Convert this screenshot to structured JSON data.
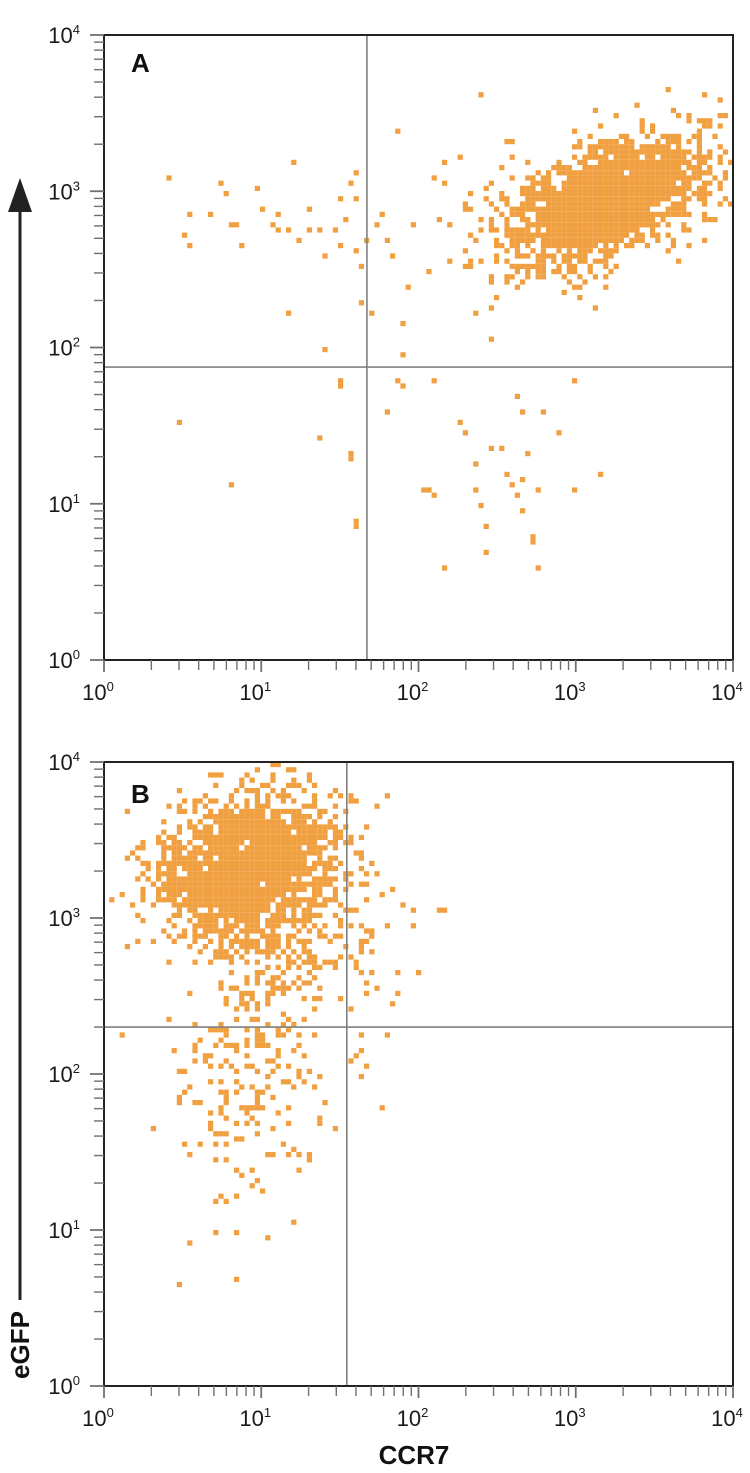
{
  "figure": {
    "y_axis_title": "eGFP",
    "x_axis_title": "CCR7",
    "dot_color": "#F0A040",
    "frame_color": "#222222",
    "gate_color": "#808080",
    "tick_color": "#707070"
  },
  "chart_data": [
    {
      "type": "scatter",
      "panel": "A",
      "title": "A",
      "xlabel": "CCR7",
      "ylabel": "eGFP",
      "xscale": "log",
      "yscale": "log",
      "xlim": [
        1,
        10000
      ],
      "ylim": [
        1,
        10000
      ],
      "x_tick_labels": [
        "10^0",
        "10^1",
        "10^2",
        "10^3",
        "10^4"
      ],
      "y_tick_labels": [
        "10^0",
        "10^1",
        "10^2",
        "10^3",
        "10^4"
      ],
      "grid": false,
      "quadrant_gates": {
        "x": 47,
        "y": 75
      },
      "clusters": [
        {
          "cx": 1800,
          "cy": 900,
          "sx_dec": 0.32,
          "sy_dec": 0.17,
          "n": 1500,
          "tilt": 0.35
        },
        {
          "cx": 700,
          "cy": 700,
          "sx_dec": 0.3,
          "sy_dec": 0.2,
          "n": 220,
          "tilt": 0.2
        }
      ],
      "sparse_points": [
        [
          1.0,
          720
        ],
        [
          2.5,
          1250
        ],
        [
          3.2,
          520
        ],
        [
          3.4,
          700
        ],
        [
          3.6,
          450
        ],
        [
          4.6,
          700
        ],
        [
          5.6,
          1100
        ],
        [
          6.2,
          1000
        ],
        [
          6.5,
          600
        ],
        [
          7.2,
          600
        ],
        [
          7.6,
          450
        ],
        [
          9.2,
          1050
        ],
        [
          9.8,
          1050
        ],
        [
          10.2,
          750
        ],
        [
          11.5,
          600
        ],
        [
          12.7,
          560
        ],
        [
          13.2,
          700
        ],
        [
          15,
          160
        ],
        [
          15.5,
          560
        ],
        [
          16.5,
          1550
        ],
        [
          17,
          480
        ],
        [
          20,
          750
        ],
        [
          21,
          550
        ],
        [
          23,
          580
        ],
        [
          25,
          100
        ],
        [
          26,
          380
        ],
        [
          29,
          560
        ],
        [
          31,
          900
        ],
        [
          33,
          440
        ],
        [
          35,
          660
        ],
        [
          37,
          1100
        ],
        [
          39,
          1300
        ],
        [
          40,
          420
        ],
        [
          41,
          900
        ],
        [
          42,
          200
        ],
        [
          44,
          340
        ],
        [
          47,
          500
        ],
        [
          52,
          160
        ],
        [
          55,
          600
        ],
        [
          60,
          700
        ],
        [
          63,
          480
        ],
        [
          70,
          400
        ],
        [
          74,
          2400
        ],
        [
          78,
          140
        ],
        [
          82,
          90
        ],
        [
          88,
          250
        ],
        [
          95,
          600
        ],
        [
          120,
          300
        ],
        [
          130,
          1200
        ],
        [
          150,
          1500
        ],
        [
          160,
          370
        ],
        [
          190,
          1600
        ],
        [
          200,
          800
        ],
        [
          250,
          4000
        ],
        [
          280,
          180
        ],
        [
          300,
          110
        ],
        [
          320,
          750
        ],
        [
          350,
          1400
        ],
        [
          380,
          2100
        ],
        [
          400,
          480
        ],
        [
          420,
          300
        ],
        [
          2500,
          3500
        ],
        [
          3800,
          4600
        ],
        [
          5200,
          3000
        ],
        [
          6500,
          4200
        ],
        [
          6000,
          2000
        ],
        [
          4800,
          1500
        ],
        [
          33,
          60
        ],
        [
          32,
          55
        ],
        [
          38,
          21
        ],
        [
          37,
          19
        ],
        [
          40,
          7.5
        ],
        [
          40,
          7
        ],
        [
          3.1,
          32
        ],
        [
          6.4,
          13
        ],
        [
          24,
          27
        ],
        [
          63,
          38
        ],
        [
          75,
          60
        ],
        [
          78,
          55
        ],
        [
          110,
          12
        ],
        [
          120,
          12
        ],
        [
          125,
          11
        ],
        [
          130,
          60
        ],
        [
          150,
          4
        ],
        [
          185,
          32
        ],
        [
          200,
          28
        ],
        [
          230,
          18
        ],
        [
          240,
          12
        ],
        [
          255,
          10
        ],
        [
          260,
          7
        ],
        [
          260,
          5
        ],
        [
          300,
          23
        ],
        [
          330,
          23
        ],
        [
          370,
          16
        ],
        [
          390,
          13
        ],
        [
          430,
          48
        ],
        [
          440,
          11
        ],
        [
          450,
          14
        ],
        [
          460,
          9
        ],
        [
          470,
          40
        ],
        [
          500,
          21
        ],
        [
          520,
          6
        ],
        [
          520,
          5.5
        ],
        [
          560,
          12
        ],
        [
          580,
          4
        ],
        [
          600,
          40
        ],
        [
          800,
          28
        ],
        [
          950,
          60
        ],
        [
          1020,
          12
        ],
        [
          1450,
          15
        ]
      ]
    },
    {
      "type": "scatter",
      "panel": "B",
      "title": "B",
      "xlabel": "CCR7",
      "ylabel": "eGFP",
      "xscale": "log",
      "yscale": "log",
      "xlim": [
        1,
        10000
      ],
      "ylim": [
        1,
        10000
      ],
      "x_tick_labels": [
        "10^0",
        "10^1",
        "10^2",
        "10^3",
        "10^4"
      ],
      "y_tick_labels": [
        "10^0",
        "10^1",
        "10^2",
        "10^3",
        "10^4"
      ],
      "grid": false,
      "quadrant_gates": {
        "x": 35,
        "y": 200
      },
      "clusters": [
        {
          "cx": 9,
          "cy": 2300,
          "sx_dec": 0.27,
          "sy_dec": 0.22,
          "n": 1300,
          "tilt": 0.15
        },
        {
          "cx": 4,
          "cy": 1700,
          "sx_dec": 0.2,
          "sy_dec": 0.22,
          "n": 220,
          "tilt": 0.0
        },
        {
          "cx": 15,
          "cy": 800,
          "sx_dec": 0.25,
          "sy_dec": 0.25,
          "n": 260,
          "tilt": 0.0
        },
        {
          "cx": 9,
          "cy": 110,
          "sx_dec": 0.22,
          "sy_dec": 0.3,
          "n": 170,
          "tilt": 0.0
        }
      ],
      "sparse_points": [
        [
          16,
          9000
        ],
        [
          20,
          8500
        ],
        [
          12,
          7800
        ],
        [
          38,
          6200
        ],
        [
          40,
          5600
        ],
        [
          55,
          5400
        ],
        [
          36,
          3200
        ],
        [
          40,
          2600
        ],
        [
          45,
          2000
        ],
        [
          48,
          1700
        ],
        [
          58,
          1400
        ],
        [
          70,
          1500
        ],
        [
          80,
          1250
        ],
        [
          92,
          1100
        ],
        [
          95,
          900
        ],
        [
          135,
          1150
        ],
        [
          143,
          1100
        ],
        [
          72,
          450
        ],
        [
          100,
          430
        ],
        [
          42,
          650
        ],
        [
          48,
          700
        ],
        [
          50,
          600
        ],
        [
          40,
          520
        ],
        [
          46,
          380
        ],
        [
          56,
          360
        ],
        [
          48,
          330
        ],
        [
          1.3,
          180
        ],
        [
          3.5,
          85
        ],
        [
          5.5,
          60
        ],
        [
          7,
          75
        ],
        [
          7.8,
          60
        ],
        [
          2.1,
          45
        ],
        [
          3.2,
          35
        ],
        [
          3.5,
          30
        ],
        [
          5,
          35
        ],
        [
          5,
          28
        ],
        [
          5.7,
          42
        ],
        [
          7,
          25
        ],
        [
          7.5,
          22
        ],
        [
          9,
          25
        ],
        [
          9.6,
          20
        ],
        [
          12,
          30
        ],
        [
          14,
          35
        ],
        [
          15,
          30
        ],
        [
          18,
          24
        ],
        [
          5.2,
          15
        ],
        [
          7,
          16
        ],
        [
          10,
          18
        ],
        [
          5,
          9.5
        ],
        [
          7,
          10
        ],
        [
          11,
          9
        ],
        [
          16,
          11
        ],
        [
          3.4,
          8
        ],
        [
          3.1,
          4.5
        ],
        [
          3.1,
          4.3
        ],
        [
          7,
          5
        ],
        [
          38,
          120
        ],
        [
          40,
          130
        ],
        [
          43,
          140
        ],
        [
          48,
          110
        ],
        [
          58,
          60
        ],
        [
          65,
          180
        ],
        [
          42,
          180
        ]
      ]
    }
  ]
}
